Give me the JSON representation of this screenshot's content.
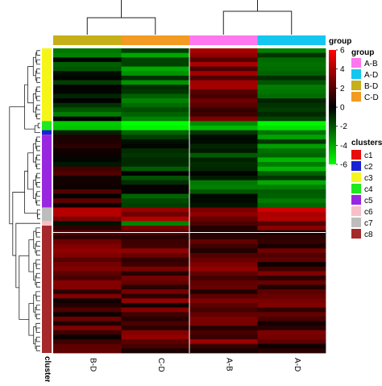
{
  "chart_data": {
    "type": "heatmap",
    "columns": [
      "B-D",
      "C-D",
      "A-B",
      "A-D"
    ],
    "column_annotation": {
      "title": "group",
      "values": [
        "B-D",
        "C-D",
        "A-B",
        "A-D"
      ]
    },
    "row_annotation": {
      "title": "clusters",
      "label": "clusters",
      "sequence": [
        {
          "cluster": "c3",
          "rows": 16
        },
        {
          "cluster": "c4",
          "rows": 2
        },
        {
          "cluster": "c2",
          "rows": 1
        },
        {
          "cluster": "c5",
          "rows": 16
        },
        {
          "cluster": "c7",
          "rows": 3
        },
        {
          "cluster": "c6",
          "rows": 1
        },
        {
          "cluster": "c8",
          "rows": 28
        }
      ]
    },
    "color_scale": {
      "min": -6,
      "max": 6,
      "ticks": [
        "6",
        "4",
        "2",
        "0",
        "-2",
        "-4",
        "-6"
      ],
      "low_color": "#00ff00",
      "mid_color": "#000000",
      "high_color": "#ff0000"
    },
    "cluster_means": {
      "c3": [
        -1.5,
        -2.5,
        2.5,
        -1.5
      ],
      "c4": [
        -3.5,
        -5.5,
        -3.5,
        -4.5
      ],
      "c2": [
        -1.0,
        -1.0,
        -2.0,
        -3.0
      ],
      "c5": [
        1.0,
        -0.8,
        -1.5,
        -2.8
      ],
      "c7": [
        3.0,
        3.5,
        2.5,
        3.5
      ],
      "c6": [
        -1.5,
        -1.5,
        3.0,
        2.5
      ],
      "c8": [
        1.8,
        2.0,
        2.2,
        1.8
      ]
    },
    "legend": {
      "group": {
        "title": "group",
        "items": [
          {
            "label": "A-B",
            "color": "#ff77ee"
          },
          {
            "label": "A-D",
            "color": "#14c7f0"
          },
          {
            "label": "B-D",
            "color": "#c7af19"
          },
          {
            "label": "C-D",
            "color": "#f29a22"
          }
        ]
      },
      "clusters": {
        "title": "clusters",
        "items": [
          {
            "label": "c1",
            "color": "#e80c0c"
          },
          {
            "label": "c2",
            "color": "#1a22d4"
          },
          {
            "label": "c3",
            "color": "#f5f51a"
          },
          {
            "label": "c4",
            "color": "#1ee81e"
          },
          {
            "label": "c5",
            "color": "#9a27e0"
          },
          {
            "label": "c6",
            "color": "#f7bfc7"
          },
          {
            "label": "c7",
            "color": "#bdbdbd"
          },
          {
            "label": "c8",
            "color": "#a5282b"
          }
        ]
      }
    }
  }
}
